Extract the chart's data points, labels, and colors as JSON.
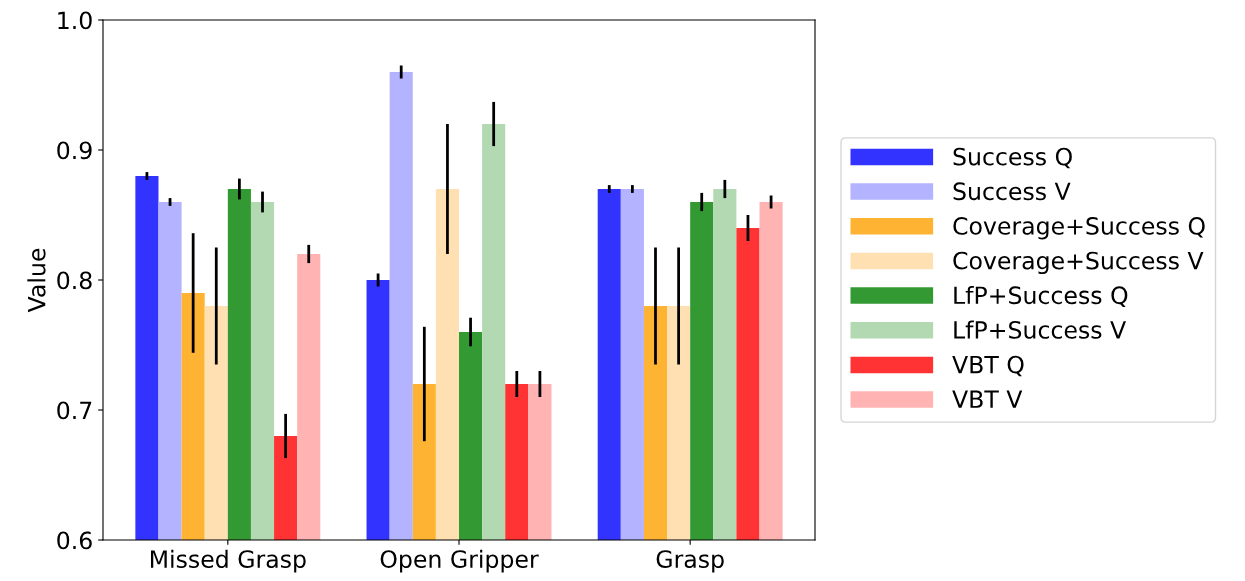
{
  "chart_data": {
    "type": "bar",
    "ylabel": "Value",
    "categories": [
      "Missed Grasp",
      "Open Gripper",
      "Grasp"
    ],
    "ylim": [
      0.6,
      1.0
    ],
    "yticks": [
      {
        "value": 0.6,
        "label": "0.6"
      },
      {
        "value": 0.7,
        "label": "0.7"
      },
      {
        "value": 0.8,
        "label": "0.8"
      },
      {
        "value": 0.9,
        "label": "0.9"
      },
      {
        "value": 1.0,
        "label": "1.0"
      }
    ],
    "grid": false,
    "legend": "right",
    "series": [
      {
        "name": "Success Q",
        "color": "#3333ff",
        "values": [
          0.88,
          0.8,
          0.87
        ],
        "errors": [
          0.003,
          0.005,
          0.003
        ]
      },
      {
        "name": "Success V",
        "color": "#b3b3ff",
        "values": [
          0.86,
          0.96,
          0.87
        ],
        "errors": [
          0.003,
          0.005,
          0.003
        ]
      },
      {
        "name": "Coverage+Success Q",
        "color": "#ffb333",
        "values": [
          0.79,
          0.72,
          0.78
        ],
        "errors": [
          0.046,
          0.044,
          0.045
        ]
      },
      {
        "name": "Coverage+Success V",
        "color": "#ffe0b3",
        "values": [
          0.78,
          0.87,
          0.78
        ],
        "errors": [
          0.045,
          0.05,
          0.045
        ]
      },
      {
        "name": "LfP+Success Q",
        "color": "#339933",
        "values": [
          0.87,
          0.76,
          0.86
        ],
        "errors": [
          0.008,
          0.011,
          0.007
        ]
      },
      {
        "name": "LfP+Success V",
        "color": "#b3d9b3",
        "values": [
          0.86,
          0.92,
          0.87
        ],
        "errors": [
          0.008,
          0.017,
          0.007
        ]
      },
      {
        "name": "VBT Q",
        "color": "#ff3333",
        "values": [
          0.68,
          0.72,
          0.84
        ],
        "errors": [
          0.017,
          0.01,
          0.01
        ]
      },
      {
        "name": "VBT V",
        "color": "#ffb3b3",
        "values": [
          0.82,
          0.72,
          0.86
        ],
        "errors": [
          0.007,
          0.01,
          0.005
        ]
      }
    ]
  }
}
